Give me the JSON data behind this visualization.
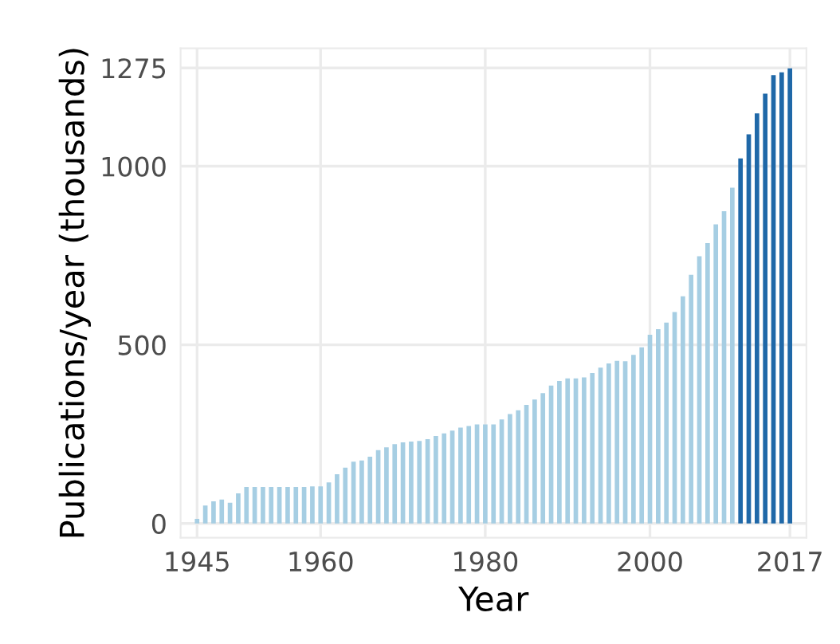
{
  "chart_data": {
    "type": "bar",
    "xlabel": "Year",
    "ylabel": "Publications/year (thousands)",
    "x": [
      1945,
      1946,
      1947,
      1948,
      1949,
      1950,
      1951,
      1952,
      1953,
      1954,
      1955,
      1956,
      1957,
      1958,
      1959,
      1960,
      1961,
      1962,
      1963,
      1964,
      1965,
      1966,
      1967,
      1968,
      1969,
      1970,
      1971,
      1972,
      1973,
      1974,
      1975,
      1976,
      1977,
      1978,
      1979,
      1980,
      1981,
      1982,
      1983,
      1984,
      1985,
      1986,
      1987,
      1988,
      1989,
      1990,
      1991,
      1992,
      1993,
      1994,
      1995,
      1996,
      1997,
      1998,
      1999,
      2000,
      2001,
      2002,
      2003,
      2004,
      2005,
      2006,
      2007,
      2008,
      2009,
      2010,
      2011,
      2012,
      2013,
      2014,
      2015,
      2016,
      2017
    ],
    "values": [
      13,
      50,
      62,
      67,
      58,
      84,
      102,
      102,
      102,
      102,
      102,
      102,
      102,
      102,
      104,
      104,
      115,
      138,
      156,
      173,
      176,
      187,
      205,
      213,
      222,
      227,
      229,
      231,
      236,
      245,
      252,
      260,
      268,
      273,
      277,
      277,
      277,
      291,
      306,
      317,
      332,
      347,
      365,
      386,
      399,
      406,
      406,
      409,
      421,
      436,
      448,
      455,
      454,
      472,
      493,
      528,
      544,
      562,
      592,
      636,
      696,
      748,
      785,
      837,
      874,
      940,
      1022,
      1089,
      1148,
      1203,
      1255,
      1263,
      1274
    ],
    "colors": [
      "#a6cee3",
      "#a6cee3",
      "#a6cee3",
      "#a6cee3",
      "#a6cee3",
      "#a6cee3",
      "#a6cee3",
      "#a6cee3",
      "#a6cee3",
      "#a6cee3",
      "#a6cee3",
      "#a6cee3",
      "#a6cee3",
      "#a6cee3",
      "#a6cee3",
      "#a6cee3",
      "#a6cee3",
      "#a6cee3",
      "#a6cee3",
      "#a6cee3",
      "#a6cee3",
      "#a6cee3",
      "#a6cee3",
      "#a6cee3",
      "#a6cee3",
      "#a6cee3",
      "#a6cee3",
      "#a6cee3",
      "#a6cee3",
      "#a6cee3",
      "#a6cee3",
      "#a6cee3",
      "#a6cee3",
      "#a6cee3",
      "#a6cee3",
      "#a6cee3",
      "#a6cee3",
      "#a6cee3",
      "#a6cee3",
      "#a6cee3",
      "#a6cee3",
      "#a6cee3",
      "#a6cee3",
      "#a6cee3",
      "#a6cee3",
      "#a6cee3",
      "#a6cee3",
      "#a6cee3",
      "#a6cee3",
      "#a6cee3",
      "#a6cee3",
      "#a6cee3",
      "#a6cee3",
      "#a6cee3",
      "#a6cee3",
      "#a6cee3",
      "#a6cee3",
      "#a6cee3",
      "#a6cee3",
      "#a6cee3",
      "#a6cee3",
      "#a6cee3",
      "#a6cee3",
      "#a6cee3",
      "#a6cee3",
      "#a6cee3",
      "#1f68a8",
      "#1f68a8",
      "#1f68a8",
      "#1f68a8",
      "#1f68a8",
      "#1f68a8",
      "#1f68a8"
    ],
    "xlim": [
      1943,
      2019
    ],
    "xticks": [
      1945,
      1960,
      1980,
      2000,
      2017
    ],
    "ylim": [
      -40,
      1330
    ],
    "yticks": [
      0,
      500,
      1000,
      1275
    ],
    "grid": true
  }
}
